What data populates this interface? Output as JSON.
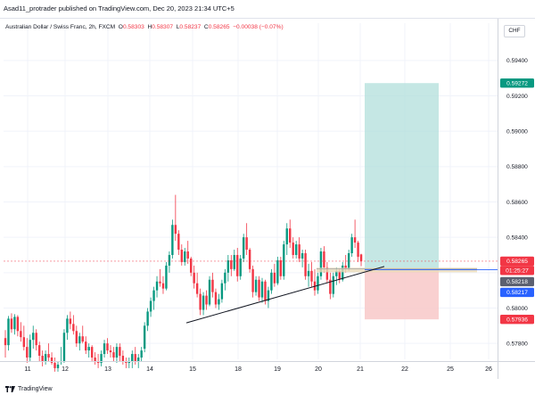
{
  "header": {
    "published_text": "Asad11_protrader published on TradingView.com, Dec 20, 2023 21:34 UTC+5"
  },
  "legend": {
    "symbol": "Australian Dollar / Swiss Franc, 2h, FXCM",
    "o_label": "O",
    "o_value": "0.58303",
    "h_label": "H",
    "h_value": "0.58307",
    "l_label": "L",
    "l_value": "0.58237",
    "c_label": "C",
    "c_value": "0.58265",
    "change": "−0.00038 (−0.07%)"
  },
  "currency_button": "CHF",
  "footer": {
    "brand": "TradingView"
  },
  "colors": {
    "up": "#089981",
    "down": "#f23645",
    "target_zone": "#b2dfdb",
    "stop_zone": "#f8c8c8",
    "target_badge": "#089981",
    "stop_badge": "#f23645",
    "price_badge": "#f23645",
    "entry_badge_dark": "#5b6070",
    "entry_badge_blue": "#2962ff"
  },
  "chart_data": {
    "type": "candlestick",
    "symbol": "AUDCHF",
    "timeframe": "2h",
    "ylim": [
      0.5771,
      0.5951
    ],
    "y_ticks": [
      0.578,
      0.58,
      0.582,
      0.584,
      0.586,
      0.588,
      0.59,
      0.592,
      0.594
    ],
    "y_tick_labels": [
      "0.57800",
      "0.58000",
      "0.58200",
      "0.58400",
      "0.58600",
      "0.58800",
      "0.59000",
      "0.59200",
      "0.59400"
    ],
    "x_tick_labels": [
      "11",
      "12",
      "13",
      "14",
      "15",
      "18",
      "19",
      "20",
      "21",
      "22",
      "25",
      "26"
    ],
    "candles": [
      [
        0.5783,
        0.57875,
        0.5772,
        0.5779
      ],
      [
        0.5779,
        0.57955,
        0.5776,
        0.5794
      ],
      [
        0.5794,
        0.5797,
        0.5786,
        0.5788
      ],
      [
        0.5788,
        0.57965,
        0.5785,
        0.5795
      ],
      [
        0.5795,
        0.5796,
        0.5784,
        0.5787
      ],
      [
        0.5787,
        0.5792,
        0.5781,
        0.57835
      ],
      [
        0.57835,
        0.579,
        0.5776,
        0.5778
      ],
      [
        0.5778,
        0.5783,
        0.5769,
        0.5772
      ],
      [
        0.5772,
        0.5785,
        0.577,
        0.5782
      ],
      [
        0.5782,
        0.579,
        0.5777,
        0.5786
      ],
      [
        0.5786,
        0.5788,
        0.5776,
        0.5779
      ],
      [
        0.5779,
        0.5781,
        0.577,
        0.5773
      ],
      [
        0.5773,
        0.5776,
        0.5767,
        0.577
      ],
      [
        0.577,
        0.5776,
        0.5768,
        0.5774
      ],
      [
        0.5774,
        0.578,
        0.577,
        0.5772
      ],
      [
        0.5772,
        0.5775,
        0.5768,
        0.5769
      ],
      [
        0.5769,
        0.5772,
        0.5764,
        0.5766
      ],
      [
        0.5766,
        0.577,
        0.5764,
        0.5768
      ],
      [
        0.577,
        0.5778,
        0.5768,
        0.577
      ],
      [
        0.577,
        0.5788,
        0.5769,
        0.5786
      ],
      [
        0.5786,
        0.5796,
        0.5782,
        0.5794
      ],
      [
        0.5794,
        0.5798,
        0.5788,
        0.5791
      ],
      [
        0.5791,
        0.5796,
        0.5785,
        0.5787
      ],
      [
        0.5787,
        0.579,
        0.5778,
        0.578
      ],
      [
        0.578,
        0.5786,
        0.5776,
        0.5784
      ],
      [
        0.5784,
        0.579,
        0.578,
        0.5781
      ],
      [
        0.5781,
        0.5784,
        0.5774,
        0.5776
      ],
      [
        0.5776,
        0.578,
        0.5772,
        0.5778
      ],
      [
        0.5778,
        0.5779,
        0.577,
        0.5772
      ],
      [
        0.5772,
        0.5775,
        0.5768,
        0.577
      ],
      [
        0.577,
        0.5774,
        0.5766,
        0.5769
      ],
      [
        0.5769,
        0.5776,
        0.5767,
        0.5774
      ],
      [
        0.5774,
        0.5782,
        0.5772,
        0.578
      ],
      [
        0.578,
        0.5783,
        0.5774,
        0.5776
      ],
      [
        0.5776,
        0.5779,
        0.5772,
        0.5775
      ],
      [
        0.5775,
        0.5778,
        0.577,
        0.5772
      ],
      [
        0.5772,
        0.578,
        0.5769,
        0.5778
      ],
      [
        0.5778,
        0.578,
        0.577,
        0.5773
      ],
      [
        0.5773,
        0.5776,
        0.5768,
        0.577
      ],
      [
        0.577,
        0.5772,
        0.5766,
        0.5769
      ],
      [
        0.5769,
        0.5772,
        0.5766,
        0.577
      ],
      [
        0.577,
        0.5776,
        0.5766,
        0.5774
      ],
      [
        0.5774,
        0.5778,
        0.5768,
        0.577
      ],
      [
        0.577,
        0.5774,
        0.5766,
        0.5772
      ],
      [
        0.5772,
        0.5778,
        0.577,
        0.5776
      ],
      [
        0.5777,
        0.5792,
        0.5775,
        0.579
      ],
      [
        0.579,
        0.58,
        0.5787,
        0.5798
      ],
      [
        0.5798,
        0.5806,
        0.5795,
        0.5804
      ],
      [
        0.5804,
        0.5812,
        0.5799,
        0.581
      ],
      [
        0.581,
        0.5818,
        0.5806,
        0.5815
      ],
      [
        0.5815,
        0.5822,
        0.5812,
        0.5814
      ],
      [
        0.5814,
        0.5818,
        0.5808,
        0.5811
      ],
      [
        0.5811,
        0.5826,
        0.581,
        0.5824
      ],
      [
        0.5824,
        0.5832,
        0.582,
        0.583
      ],
      [
        0.583,
        0.585,
        0.5828,
        0.5847
      ],
      [
        0.5847,
        0.5864,
        0.5838,
        0.5842
      ],
      [
        0.5842,
        0.5844,
        0.583,
        0.5833
      ],
      [
        0.5833,
        0.5836,
        0.5824,
        0.5826
      ],
      [
        0.5826,
        0.5834,
        0.5824,
        0.5832
      ],
      [
        0.5832,
        0.5838,
        0.5825,
        0.5828
      ],
      [
        0.5828,
        0.5829,
        0.5818,
        0.582
      ],
      [
        0.582,
        0.5824,
        0.5811,
        0.5814
      ],
      [
        0.5814,
        0.582,
        0.5806,
        0.5808
      ],
      [
        0.5808,
        0.5811,
        0.5796,
        0.5799
      ],
      [
        0.5799,
        0.5809,
        0.5796,
        0.5807
      ],
      [
        0.5807,
        0.581,
        0.5799,
        0.5802
      ],
      [
        0.5802,
        0.5818,
        0.5801,
        0.5816
      ],
      [
        0.5816,
        0.582,
        0.5806,
        0.5809
      ],
      [
        0.5809,
        0.5811,
        0.58,
        0.5802
      ],
      [
        0.5802,
        0.5808,
        0.5799,
        0.5805
      ],
      [
        0.5805,
        0.5816,
        0.5803,
        0.5814
      ],
      [
        0.5814,
        0.5822,
        0.581,
        0.582
      ],
      [
        0.582,
        0.583,
        0.5815,
        0.5827
      ],
      [
        0.5827,
        0.583,
        0.5818,
        0.5822
      ],
      [
        0.5822,
        0.5833,
        0.5821,
        0.583
      ],
      [
        0.583,
        0.5834,
        0.5815,
        0.5818
      ],
      [
        0.5818,
        0.583,
        0.5816,
        0.5828
      ],
      [
        0.5828,
        0.5842,
        0.5826,
        0.584
      ],
      [
        0.584,
        0.5848,
        0.583,
        0.5833
      ],
      [
        0.5833,
        0.5834,
        0.582,
        0.5822
      ],
      [
        0.5822,
        0.5824,
        0.5806,
        0.5809
      ],
      [
        0.5809,
        0.5818,
        0.5807,
        0.5816
      ],
      [
        0.5816,
        0.5818,
        0.5804,
        0.5806
      ],
      [
        0.5806,
        0.5817,
        0.5803,
        0.5815
      ],
      [
        0.5815,
        0.5816,
        0.5802,
        0.5804
      ],
      [
        0.5804,
        0.5812,
        0.58,
        0.581
      ],
      [
        0.581,
        0.5822,
        0.5808,
        0.582
      ],
      [
        0.582,
        0.5825,
        0.5812,
        0.5814
      ],
      [
        0.5814,
        0.5829,
        0.5813,
        0.5827
      ],
      [
        0.5827,
        0.5829,
        0.5816,
        0.5818
      ],
      [
        0.5818,
        0.5838,
        0.5816,
        0.5836
      ],
      [
        0.5836,
        0.5848,
        0.583,
        0.5845
      ],
      [
        0.5845,
        0.585,
        0.5834,
        0.5837
      ],
      [
        0.5837,
        0.584,
        0.5828,
        0.583
      ],
      [
        0.583,
        0.5838,
        0.5828,
        0.5836
      ],
      [
        0.5836,
        0.584,
        0.5826,
        0.5828
      ],
      [
        0.5828,
        0.5833,
        0.5823,
        0.5831
      ],
      [
        0.5831,
        0.5833,
        0.5816,
        0.5818
      ],
      [
        0.5818,
        0.5825,
        0.5812,
        0.5821
      ],
      [
        0.5821,
        0.5826,
        0.5812,
        0.5815
      ],
      [
        0.5815,
        0.5822,
        0.5807,
        0.581
      ],
      [
        0.581,
        0.582,
        0.5808,
        0.5818
      ],
      [
        0.5818,
        0.5834,
        0.5816,
        0.5832
      ],
      [
        0.5832,
        0.5835,
        0.582,
        0.5823
      ],
      [
        0.5823,
        0.5826,
        0.5814,
        0.5816
      ],
      [
        0.5816,
        0.582,
        0.5805,
        0.5808
      ],
      [
        0.5808,
        0.582,
        0.5806,
        0.5818
      ],
      [
        0.5818,
        0.5823,
        0.5813,
        0.5821
      ],
      [
        0.5821,
        0.5822,
        0.5814,
        0.5816
      ],
      [
        0.5816,
        0.5826,
        0.5815,
        0.5824
      ],
      [
        0.5824,
        0.583,
        0.582,
        0.5822
      ],
      [
        0.5822,
        0.5833,
        0.5821,
        0.5831
      ],
      [
        0.5831,
        0.5842,
        0.5829,
        0.584
      ],
      [
        0.584,
        0.585,
        0.5834,
        0.5837
      ],
      [
        0.5837,
        0.5838,
        0.5826,
        0.5829
      ],
      [
        0.58303,
        0.58307,
        0.58237,
        0.58265
      ]
    ],
    "trendline": {
      "from": [
        "15",
        0.57916
      ],
      "to": [
        "21",
        0.58235
      ]
    },
    "long_position": {
      "target": 0.59272,
      "entry_top": 0.58218,
      "entry_bottom": 0.58217,
      "stop": 0.57936
    },
    "price_labels": [
      {
        "text": "0.59272",
        "kind": "target"
      },
      {
        "text": "0.58265",
        "kind": "last"
      },
      {
        "text": "01:25:27",
        "kind": "countdown"
      },
      {
        "text": "0.58218",
        "kind": "entry"
      },
      {
        "text": "0.58217",
        "kind": "entry-blue"
      },
      {
        "text": "0.57936",
        "kind": "stop"
      }
    ]
  }
}
